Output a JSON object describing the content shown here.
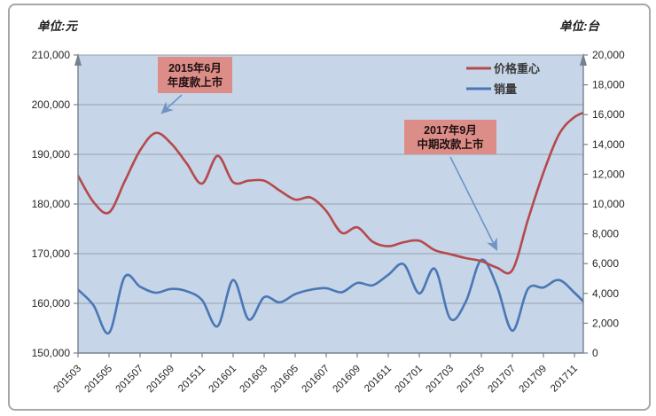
{
  "colors": {
    "price_line": "#b5494c",
    "sales_line": "#4a77b4",
    "plot_bg": "#c6d5e8",
    "annotation_box": "#dd8d87",
    "arrow": "#6f93c4",
    "gridline": "#97a1ad"
  },
  "legend": [
    {
      "label": "价格重心",
      "color": "#b5494c"
    },
    {
      "label": "销量",
      "color": "#4a77b4"
    }
  ],
  "annotations": [
    {
      "line1": "2015年6月",
      "line2": "年度款上市"
    },
    {
      "line1": "2017年9月",
      "line2": "中期改款上市"
    }
  ],
  "chart_data": {
    "type": "line",
    "title": "",
    "left_axis": {
      "title": "单位:元",
      "min": 150000,
      "max": 210000,
      "step": 10000
    },
    "right_axis": {
      "title": "单位:台",
      "min": 0,
      "max": 20000,
      "step": 2000
    },
    "grid": "horizontal",
    "legend_position": "top-right-inside",
    "x": [
      "201503",
      "201504",
      "201505",
      "201506",
      "201507",
      "201508",
      "201509",
      "201510",
      "201511",
      "201512",
      "201601",
      "201602",
      "201603",
      "201604",
      "201605",
      "201606",
      "201607",
      "201608",
      "201609",
      "201610",
      "201611",
      "201612",
      "201701",
      "201702",
      "201703",
      "201704",
      "201705",
      "201706",
      "201707",
      "201708",
      "201709",
      "201710",
      "201711",
      "201712"
    ],
    "x_tick_labels": [
      "201503",
      "201505",
      "201507",
      "201509",
      "201511",
      "201601",
      "201603",
      "201605",
      "201607",
      "201609",
      "201611",
      "201701",
      "201703",
      "201705",
      "201707",
      "201709",
      "201711"
    ],
    "series": [
      {
        "name": "价格重心",
        "axis": "left",
        "color": "#b5494c",
        "values": [
          185700,
          180400,
          178300,
          184500,
          190800,
          194300,
          192200,
          188200,
          184100,
          189700,
          184400,
          184700,
          184700,
          182700,
          180900,
          181300,
          178600,
          174200,
          175300,
          172400,
          171500,
          172300,
          172600,
          170700,
          169900,
          169100,
          168500,
          167200,
          166700,
          176800,
          186300,
          194000,
          197500,
          198800
        ]
      },
      {
        "name": "销量",
        "axis": "right",
        "color": "#4a77b4",
        "values": [
          4250,
          3200,
          1350,
          5100,
          4450,
          4050,
          4300,
          4150,
          3550,
          1800,
          4900,
          2250,
          3750,
          3400,
          3950,
          4250,
          4350,
          4080,
          4700,
          4550,
          5250,
          5950,
          4000,
          5650,
          2300,
          3450,
          6250,
          4500,
          1500,
          4300,
          4400,
          4900,
          4050,
          3000
        ]
      }
    ]
  }
}
